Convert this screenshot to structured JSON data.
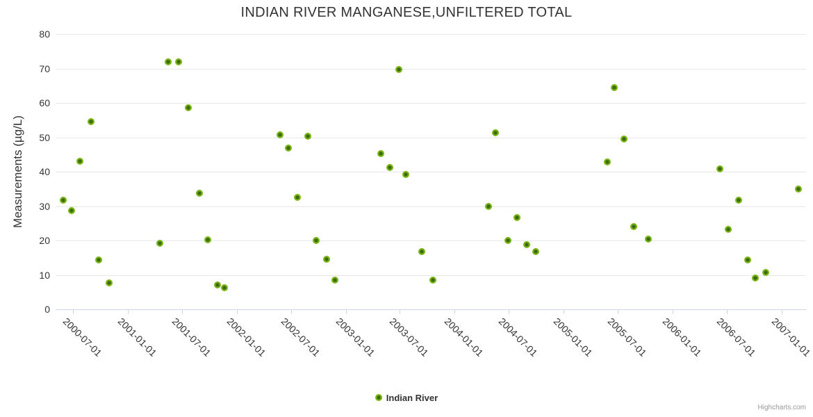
{
  "credit": "Highcharts.com",
  "colors": {
    "marker_ring": "#78b414",
    "marker_core": "#3c690f",
    "gridline": "#e6e6e6",
    "axis_line": "#ccd6eb",
    "text": "#333333",
    "credit_text": "#999999"
  },
  "chart_data": {
    "type": "scatter",
    "title": "INDIAN RIVER MANGANESE,UNFILTERED TOTAL",
    "xlabel": "",
    "ylabel": "Measurements (µg/L)",
    "ylim": [
      0,
      80
    ],
    "yticks": [
      0,
      10,
      20,
      30,
      40,
      50,
      60,
      70,
      80
    ],
    "xticks": [
      "2000-07-01",
      "2001-01-01",
      "2001-07-01",
      "2002-01-01",
      "2002-07-01",
      "2003-01-01",
      "2003-07-01",
      "2004-01-01",
      "2004-07-01",
      "2005-01-01",
      "2005-07-01",
      "2006-01-01",
      "2006-07-01",
      "2007-01-01"
    ],
    "xtick_rotation": 45,
    "grid": true,
    "legend_position": "bottom",
    "series": [
      {
        "name": "Indian River",
        "color": "#78b414",
        "points": [
          [
            "2000-05-29",
            31.7
          ],
          [
            "2000-06-26",
            28.7
          ],
          [
            "2000-07-24",
            43.0
          ],
          [
            "2000-08-30",
            54.5
          ],
          [
            "2000-09-25",
            14.3
          ],
          [
            "2000-10-30",
            7.7
          ],
          [
            "2001-04-18",
            19.2
          ],
          [
            "2001-05-15",
            71.9
          ],
          [
            "2001-06-19",
            71.9
          ],
          [
            "2001-07-23",
            58.6
          ],
          [
            "2001-08-28",
            33.7
          ],
          [
            "2001-09-26",
            20.2
          ],
          [
            "2001-10-29",
            7.1
          ],
          [
            "2001-11-21",
            6.3
          ],
          [
            "2002-05-26",
            50.8
          ],
          [
            "2002-06-23",
            46.8
          ],
          [
            "2002-07-23",
            32.5
          ],
          [
            "2002-08-28",
            50.3
          ],
          [
            "2002-09-24",
            19.9
          ],
          [
            "2002-10-29",
            14.6
          ],
          [
            "2002-11-25",
            8.5
          ],
          [
            "2003-04-28",
            45.3
          ],
          [
            "2003-05-28",
            41.2
          ],
          [
            "2003-06-29",
            69.6
          ],
          [
            "2003-07-22",
            39.1
          ],
          [
            "2003-09-12",
            16.8
          ],
          [
            "2003-10-21",
            8.5
          ],
          [
            "2004-04-24",
            30.0
          ],
          [
            "2004-05-16",
            51.3
          ],
          [
            "2004-06-28",
            19.9
          ],
          [
            "2004-07-28",
            26.6
          ],
          [
            "2004-08-30",
            18.7
          ],
          [
            "2004-09-28",
            16.8
          ],
          [
            "2005-05-26",
            42.9
          ],
          [
            "2005-06-19",
            64.4
          ],
          [
            "2005-07-22",
            49.4
          ],
          [
            "2005-08-22",
            24.0
          ],
          [
            "2005-10-12",
            20.4
          ],
          [
            "2006-06-07",
            40.9
          ],
          [
            "2006-07-06",
            23.2
          ],
          [
            "2006-08-09",
            31.7
          ],
          [
            "2006-09-08",
            14.3
          ],
          [
            "2006-10-05",
            9.1
          ],
          [
            "2006-11-08",
            10.7
          ],
          [
            "2007-02-26",
            34.9
          ]
        ]
      }
    ]
  }
}
